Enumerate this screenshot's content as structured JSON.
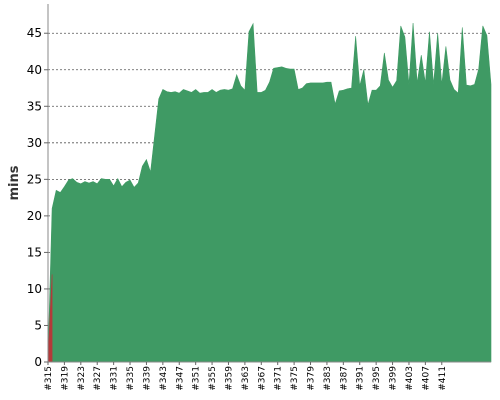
{
  "chart_data": {
    "type": "area",
    "title": "",
    "xlabel": "",
    "ylabel": "mins",
    "ylim": [
      0,
      49
    ],
    "yticks": [
      0,
      5,
      10,
      15,
      20,
      25,
      30,
      35,
      40,
      45
    ],
    "grid": true,
    "x_tick_labels": [
      "#315",
      "#319",
      "#323",
      "#327",
      "#331",
      "#335",
      "#339",
      "#343",
      "#347",
      "#351",
      "#355",
      "#359",
      "#363",
      "#367",
      "#371",
      "#375",
      "#379",
      "#383",
      "#387",
      "#391",
      "#395",
      "#399",
      "#403",
      "#407",
      "#411"
    ],
    "build_start": 315,
    "series": [
      {
        "color": "#3f9a64",
        "values": [
          0.5,
          21.0,
          23.5,
          23.2,
          24.0,
          24.9,
          25.1,
          24.6,
          24.4,
          24.7,
          24.5,
          24.7,
          24.4,
          25.1,
          25.0,
          25.0,
          24.1,
          25.1,
          24.0,
          24.6,
          24.9,
          23.9,
          24.5,
          26.8,
          27.7,
          26.0,
          31.0,
          36.0,
          37.3,
          37.0,
          36.9,
          37.0,
          36.8,
          37.3,
          37.1,
          36.9,
          37.3,
          36.8,
          36.9,
          36.9,
          37.3,
          36.9,
          37.2,
          37.3,
          37.2,
          37.4,
          39.3,
          37.8,
          37.2,
          45.2,
          46.3,
          36.9,
          36.9,
          37.2,
          38.3,
          40.2,
          40.3,
          40.4,
          40.2,
          40.1,
          40.1,
          37.3,
          37.5,
          38.1,
          38.2,
          38.2,
          38.2,
          38.2,
          38.3,
          38.3,
          35.3,
          37.1,
          37.2,
          37.4,
          37.5,
          44.6,
          37.8,
          40.0,
          35.2,
          37.2,
          37.2,
          37.8,
          42.3,
          38.6,
          37.6,
          38.5,
          46.0,
          44.5,
          38.0,
          46.4,
          38.2,
          42.0,
          38.2,
          45.2,
          38.0,
          45.0,
          38.0,
          43.2,
          38.6,
          37.3,
          36.8,
          45.8,
          37.9,
          37.8,
          38.0,
          40.1,
          46.0,
          44.7,
          38.0
        ]
      },
      {
        "color": "#b43a3a",
        "values": [
          0.5,
          12.0
        ]
      }
    ]
  }
}
